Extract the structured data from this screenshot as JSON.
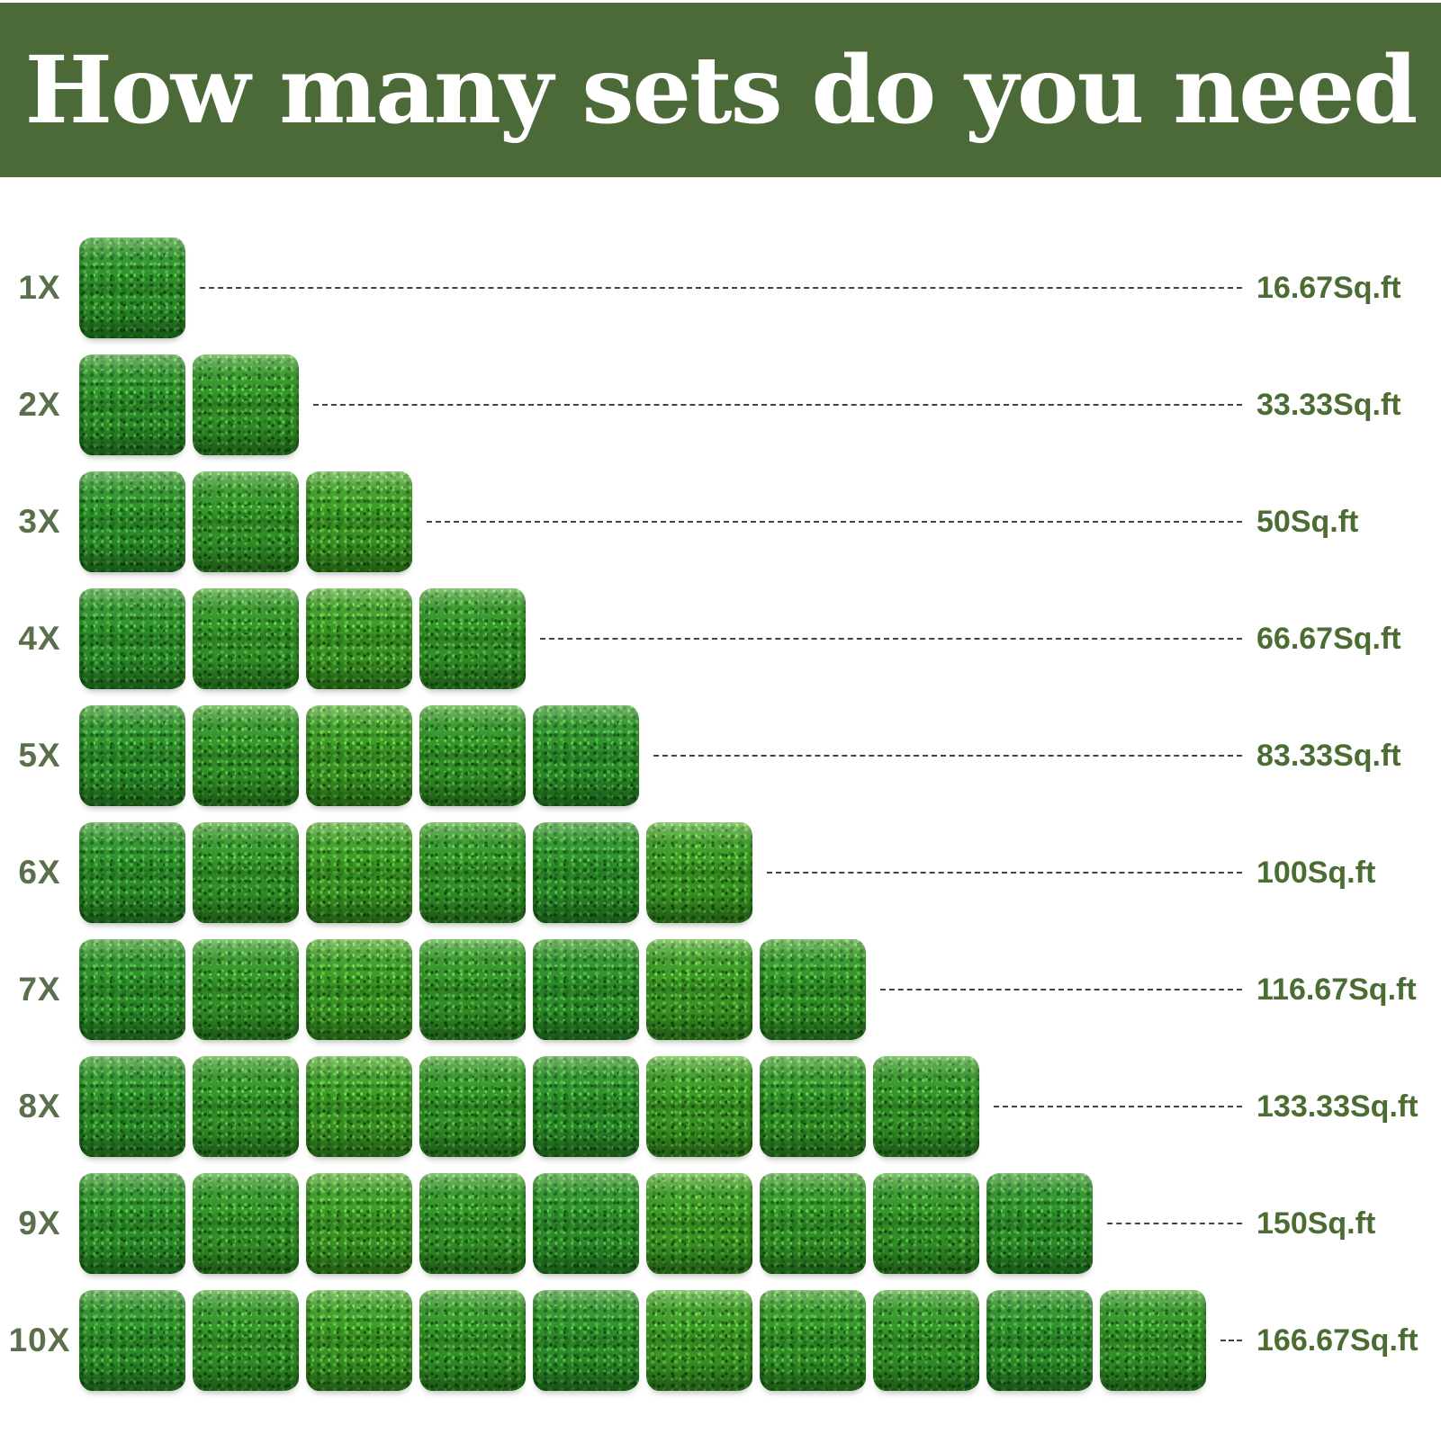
{
  "header": {
    "title": "How many sets do you need"
  },
  "rows": [
    {
      "label": "1X",
      "count": 1,
      "coverage": "16.67Sq.ft"
    },
    {
      "label": "2X",
      "count": 2,
      "coverage": "33.33Sq.ft"
    },
    {
      "label": "3X",
      "count": 3,
      "coverage": "50Sq.ft"
    },
    {
      "label": "4X",
      "count": 4,
      "coverage": "66.67Sq.ft"
    },
    {
      "label": "5X",
      "count": 5,
      "coverage": "83.33Sq.ft"
    },
    {
      "label": "6X",
      "count": 6,
      "coverage": "100Sq.ft"
    },
    {
      "label": "7X",
      "count": 7,
      "coverage": "116.67Sq.ft"
    },
    {
      "label": "8X",
      "count": 8,
      "coverage": "133.33Sq.ft"
    },
    {
      "label": "9X",
      "count": 9,
      "coverage": "150Sq.ft"
    },
    {
      "label": "10X",
      "count": 10,
      "coverage": "166.67Sq.ft"
    }
  ],
  "chart_data": {
    "type": "bar",
    "variant": "pictogram",
    "title": "How many sets do you need",
    "categories": [
      "1X",
      "2X",
      "3X",
      "4X",
      "5X",
      "6X",
      "7X",
      "8X",
      "9X",
      "10X"
    ],
    "values": [
      16.67,
      33.33,
      50,
      66.67,
      83.33,
      100,
      116.67,
      133.33,
      150,
      166.67
    ],
    "value_labels": [
      "16.67Sq.ft",
      "33.33Sq.ft",
      "50Sq.ft",
      "66.67Sq.ft",
      "83.33Sq.ft",
      "100Sq.ft",
      "116.67Sq.ft",
      "133.33Sq.ft",
      "150Sq.ft",
      "166.67Sq.ft"
    ],
    "unit": "Sq.ft",
    "coverage_per_set_sqft": 16.67,
    "icons_per_category": [
      1,
      2,
      3,
      4,
      5,
      6,
      7,
      8,
      9,
      10
    ],
    "icon": "boxwood-grass-panel",
    "xlabel": "",
    "ylabel": "",
    "grid": false,
    "legend_position": "none"
  },
  "colors": {
    "banner_green": "#4b6a38",
    "title_white": "#ffffff",
    "label_green": "#5a6f4b",
    "value_green": "#4b6c33",
    "leader_line": "#3f453c",
    "panel_green": "#35962b",
    "background": "#ffffff"
  }
}
